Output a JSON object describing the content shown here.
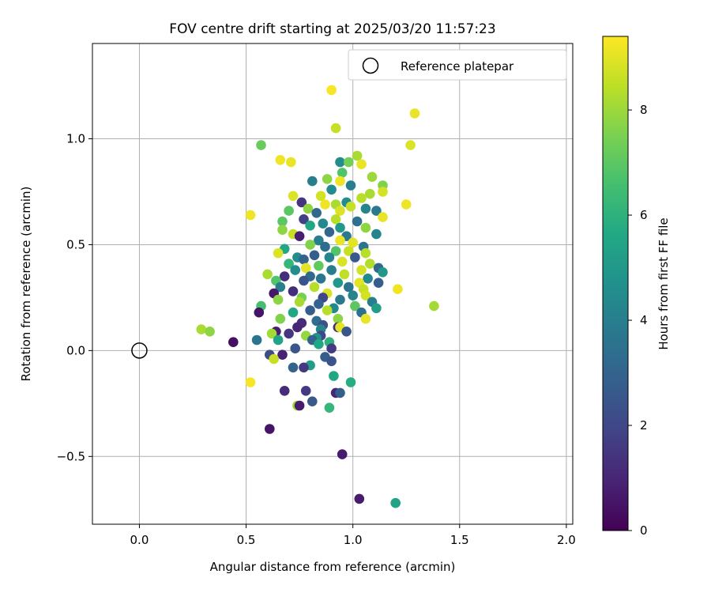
{
  "chart_data": {
    "type": "scatter",
    "title": "FOV centre drift starting at 2025/03/20 11:57:23",
    "xlabel": "Angular distance from reference (arcmin)",
    "ylabel": "Rotation from reference (arcmin)",
    "xlim": [
      -0.22,
      2.03
    ],
    "ylim": [
      -0.82,
      1.45
    ],
    "xticks": [
      0.0,
      0.5,
      1.0,
      1.5,
      2.0
    ],
    "xtick_labels": [
      "0.0",
      "0.5",
      "1.0",
      "1.5",
      "2.0"
    ],
    "yticks": [
      -0.5,
      0.0,
      0.5,
      1.0
    ],
    "ytick_labels": [
      "−0.5",
      "0.0",
      "0.5",
      "1.0"
    ],
    "grid": true,
    "legend": {
      "location": "top-right",
      "entries": [
        "Reference platepar"
      ]
    },
    "colorbar": {
      "label": "Hours from first FF file",
      "range": [
        0,
        9.4
      ],
      "ticks": [
        0,
        2,
        4,
        6,
        8
      ],
      "tick_labels": [
        "0",
        "2",
        "4",
        "6",
        "8"
      ],
      "colormap": "viridis"
    },
    "reference_point": {
      "x": 0.0,
      "y": 0.0
    },
    "points": [
      {
        "x": 0.9,
        "y": 1.23,
        "h": 9.3
      },
      {
        "x": 1.29,
        "y": 1.12,
        "h": 9.1
      },
      {
        "x": 0.92,
        "y": 1.05,
        "h": 8.6
      },
      {
        "x": 1.27,
        "y": 0.97,
        "h": 8.9
      },
      {
        "x": 0.57,
        "y": 0.97,
        "h": 7.2
      },
      {
        "x": 1.02,
        "y": 0.92,
        "h": 8.2
      },
      {
        "x": 0.66,
        "y": 0.9,
        "h": 9.2
      },
      {
        "x": 0.71,
        "y": 0.89,
        "h": 9.1
      },
      {
        "x": 0.94,
        "y": 0.89,
        "h": 4.5
      },
      {
        "x": 0.98,
        "y": 0.89,
        "h": 7.4
      },
      {
        "x": 1.04,
        "y": 0.88,
        "h": 9.1
      },
      {
        "x": 0.95,
        "y": 0.84,
        "h": 6.8
      },
      {
        "x": 1.09,
        "y": 0.82,
        "h": 8.0
      },
      {
        "x": 0.88,
        "y": 0.81,
        "h": 7.8
      },
      {
        "x": 0.81,
        "y": 0.8,
        "h": 4.0
      },
      {
        "x": 0.94,
        "y": 0.8,
        "h": 9.2
      },
      {
        "x": 1.14,
        "y": 0.78,
        "h": 7.6
      },
      {
        "x": 0.99,
        "y": 0.78,
        "h": 4.0
      },
      {
        "x": 0.9,
        "y": 0.76,
        "h": 4.5
      },
      {
        "x": 1.14,
        "y": 0.75,
        "h": 8.8
      },
      {
        "x": 1.08,
        "y": 0.74,
        "h": 8.2
      },
      {
        "x": 0.72,
        "y": 0.73,
        "h": 8.9
      },
      {
        "x": 0.85,
        "y": 0.73,
        "h": 8.8
      },
      {
        "x": 1.04,
        "y": 0.72,
        "h": 8.4
      },
      {
        "x": 0.76,
        "y": 0.7,
        "h": 1.4
      },
      {
        "x": 0.97,
        "y": 0.7,
        "h": 4.5
      },
      {
        "x": 0.87,
        "y": 0.69,
        "h": 9.2
      },
      {
        "x": 0.92,
        "y": 0.69,
        "h": 8.2
      },
      {
        "x": 1.25,
        "y": 0.69,
        "h": 9.2
      },
      {
        "x": 0.79,
        "y": 0.67,
        "h": 7.8
      },
      {
        "x": 0.7,
        "y": 0.66,
        "h": 7.0
      },
      {
        "x": 1.06,
        "y": 0.67,
        "h": 4.2
      },
      {
        "x": 0.94,
        "y": 0.66,
        "h": 8.9
      },
      {
        "x": 1.11,
        "y": 0.66,
        "h": 3.8
      },
      {
        "x": 0.99,
        "y": 0.68,
        "h": 8.6
      },
      {
        "x": 0.52,
        "y": 0.64,
        "h": 9.2
      },
      {
        "x": 0.83,
        "y": 0.65,
        "h": 3.2
      },
      {
        "x": 0.92,
        "y": 0.62,
        "h": 8.4
      },
      {
        "x": 1.14,
        "y": 0.63,
        "h": 9.1
      },
      {
        "x": 0.77,
        "y": 0.62,
        "h": 1.8
      },
      {
        "x": 0.67,
        "y": 0.61,
        "h": 7.0
      },
      {
        "x": 1.02,
        "y": 0.61,
        "h": 3.5
      },
      {
        "x": 0.86,
        "y": 0.6,
        "h": 4.4
      },
      {
        "x": 0.8,
        "y": 0.59,
        "h": 5.6
      },
      {
        "x": 1.06,
        "y": 0.58,
        "h": 7.8
      },
      {
        "x": 0.94,
        "y": 0.58,
        "h": 5.0
      },
      {
        "x": 0.67,
        "y": 0.57,
        "h": 7.8
      },
      {
        "x": 0.89,
        "y": 0.56,
        "h": 3.1
      },
      {
        "x": 0.72,
        "y": 0.55,
        "h": 8.6
      },
      {
        "x": 0.97,
        "y": 0.54,
        "h": 3.8
      },
      {
        "x": 1.11,
        "y": 0.55,
        "h": 4.2
      },
      {
        "x": 0.75,
        "y": 0.54,
        "h": 0.8
      },
      {
        "x": 0.84,
        "y": 0.52,
        "h": 4.0
      },
      {
        "x": 0.94,
        "y": 0.52,
        "h": 9.1
      },
      {
        "x": 1.0,
        "y": 0.51,
        "h": 9.0
      },
      {
        "x": 0.8,
        "y": 0.5,
        "h": 7.6
      },
      {
        "x": 1.05,
        "y": 0.49,
        "h": 3.6
      },
      {
        "x": 0.87,
        "y": 0.49,
        "h": 3.3
      },
      {
        "x": 0.92,
        "y": 0.47,
        "h": 6.8
      },
      {
        "x": 0.68,
        "y": 0.48,
        "h": 5.6
      },
      {
        "x": 0.98,
        "y": 0.47,
        "h": 8.6
      },
      {
        "x": 0.65,
        "y": 0.46,
        "h": 8.9
      },
      {
        "x": 1.06,
        "y": 0.46,
        "h": 8.4
      },
      {
        "x": 0.82,
        "y": 0.45,
        "h": 2.8
      },
      {
        "x": 0.74,
        "y": 0.44,
        "h": 4.5
      },
      {
        "x": 0.89,
        "y": 0.44,
        "h": 4.2
      },
      {
        "x": 1.01,
        "y": 0.44,
        "h": 2.6
      },
      {
        "x": 0.77,
        "y": 0.43,
        "h": 3.0
      },
      {
        "x": 0.95,
        "y": 0.42,
        "h": 8.9
      },
      {
        "x": 1.08,
        "y": 0.41,
        "h": 8.3
      },
      {
        "x": 0.7,
        "y": 0.41,
        "h": 6.2
      },
      {
        "x": 0.84,
        "y": 0.4,
        "h": 7.1
      },
      {
        "x": 1.12,
        "y": 0.39,
        "h": 3.1
      },
      {
        "x": 0.78,
        "y": 0.39,
        "h": 9.0
      },
      {
        "x": 1.04,
        "y": 0.38,
        "h": 8.8
      },
      {
        "x": 0.73,
        "y": 0.38,
        "h": 4.5
      },
      {
        "x": 0.9,
        "y": 0.38,
        "h": 4.0
      },
      {
        "x": 1.14,
        "y": 0.37,
        "h": 5.0
      },
      {
        "x": 0.6,
        "y": 0.36,
        "h": 8.2
      },
      {
        "x": 0.96,
        "y": 0.36,
        "h": 8.5
      },
      {
        "x": 0.8,
        "y": 0.35,
        "h": 3.2
      },
      {
        "x": 0.68,
        "y": 0.35,
        "h": 1.2
      },
      {
        "x": 1.07,
        "y": 0.34,
        "h": 4.4
      },
      {
        "x": 0.85,
        "y": 0.34,
        "h": 3.7
      },
      {
        "x": 0.64,
        "y": 0.33,
        "h": 6.8
      },
      {
        "x": 0.77,
        "y": 0.33,
        "h": 2.4
      },
      {
        "x": 1.03,
        "y": 0.32,
        "h": 9.0
      },
      {
        "x": 1.12,
        "y": 0.32,
        "h": 2.8
      },
      {
        "x": 0.93,
        "y": 0.32,
        "h": 5.0
      },
      {
        "x": 0.66,
        "y": 0.3,
        "h": 4.0
      },
      {
        "x": 0.98,
        "y": 0.3,
        "h": 3.6
      },
      {
        "x": 0.82,
        "y": 0.3,
        "h": 8.4
      },
      {
        "x": 1.05,
        "y": 0.29,
        "h": 8.6
      },
      {
        "x": 1.21,
        "y": 0.29,
        "h": 9.2
      },
      {
        "x": 0.72,
        "y": 0.28,
        "h": 1.2
      },
      {
        "x": 0.88,
        "y": 0.27,
        "h": 8.9
      },
      {
        "x": 0.63,
        "y": 0.27,
        "h": 0.6
      },
      {
        "x": 1.0,
        "y": 0.26,
        "h": 4.2
      },
      {
        "x": 1.06,
        "y": 0.26,
        "h": 8.8
      },
      {
        "x": 0.76,
        "y": 0.25,
        "h": 7.4
      },
      {
        "x": 0.86,
        "y": 0.25,
        "h": 2.0
      },
      {
        "x": 0.94,
        "y": 0.24,
        "h": 3.8
      },
      {
        "x": 0.65,
        "y": 0.24,
        "h": 7.8
      },
      {
        "x": 1.09,
        "y": 0.23,
        "h": 4.0
      },
      {
        "x": 0.75,
        "y": 0.23,
        "h": 8.2
      },
      {
        "x": 0.84,
        "y": 0.22,
        "h": 3.0
      },
      {
        "x": 0.57,
        "y": 0.21,
        "h": 6.6
      },
      {
        "x": 1.38,
        "y": 0.21,
        "h": 8.1
      },
      {
        "x": 1.01,
        "y": 0.21,
        "h": 7.0
      },
      {
        "x": 0.91,
        "y": 0.2,
        "h": 4.4
      },
      {
        "x": 1.11,
        "y": 0.2,
        "h": 5.2
      },
      {
        "x": 0.8,
        "y": 0.19,
        "h": 2.8
      },
      {
        "x": 0.56,
        "y": 0.18,
        "h": 0.5
      },
      {
        "x": 0.72,
        "y": 0.18,
        "h": 5.6
      },
      {
        "x": 0.88,
        "y": 0.19,
        "h": 8.4
      },
      {
        "x": 1.04,
        "y": 0.18,
        "h": 3.5
      },
      {
        "x": 0.66,
        "y": 0.15,
        "h": 7.6
      },
      {
        "x": 1.06,
        "y": 0.15,
        "h": 9.1
      },
      {
        "x": 0.93,
        "y": 0.15,
        "h": 7.8
      },
      {
        "x": 0.83,
        "y": 0.14,
        "h": 3.4
      },
      {
        "x": 0.76,
        "y": 0.13,
        "h": 1.2
      },
      {
        "x": 0.86,
        "y": 0.12,
        "h": 2.3
      },
      {
        "x": 0.93,
        "y": 0.11,
        "h": 1.2
      },
      {
        "x": 0.74,
        "y": 0.11,
        "h": 1.0
      },
      {
        "x": 0.94,
        "y": 0.11,
        "h": 9.0
      },
      {
        "x": 0.85,
        "y": 0.1,
        "h": 4.2
      },
      {
        "x": 0.29,
        "y": 0.1,
        "h": 8.2
      },
      {
        "x": 0.97,
        "y": 0.09,
        "h": 2.5
      },
      {
        "x": 0.33,
        "y": 0.09,
        "h": 7.8
      },
      {
        "x": 0.64,
        "y": 0.09,
        "h": 0.8
      },
      {
        "x": 0.7,
        "y": 0.08,
        "h": 1.5
      },
      {
        "x": 0.62,
        "y": 0.08,
        "h": 8.1
      },
      {
        "x": 0.78,
        "y": 0.07,
        "h": 7.9
      },
      {
        "x": 0.85,
        "y": 0.07,
        "h": 2.0
      },
      {
        "x": 0.83,
        "y": 0.06,
        "h": 4.8
      },
      {
        "x": 0.81,
        "y": 0.05,
        "h": 3.0
      },
      {
        "x": 0.55,
        "y": 0.05,
        "h": 3.6
      },
      {
        "x": 0.65,
        "y": 0.05,
        "h": 5.4
      },
      {
        "x": 0.89,
        "y": 0.04,
        "h": 6.0
      },
      {
        "x": 0.84,
        "y": 0.03,
        "h": 5.6
      },
      {
        "x": 0.44,
        "y": 0.04,
        "h": 0.4
      },
      {
        "x": 0.73,
        "y": 0.01,
        "h": 2.5
      },
      {
        "x": 0.9,
        "y": 0.01,
        "h": 1.6
      },
      {
        "x": 0.61,
        "y": -0.02,
        "h": 2.2
      },
      {
        "x": 0.67,
        "y": -0.02,
        "h": 0.9
      },
      {
        "x": 0.63,
        "y": -0.04,
        "h": 8.6
      },
      {
        "x": 0.87,
        "y": -0.03,
        "h": 2.8
      },
      {
        "x": 0.9,
        "y": -0.05,
        "h": 2.4
      },
      {
        "x": 0.8,
        "y": -0.07,
        "h": 5.2
      },
      {
        "x": 0.72,
        "y": -0.08,
        "h": 3.0
      },
      {
        "x": 0.77,
        "y": -0.08,
        "h": 1.6
      },
      {
        "x": 0.91,
        "y": -0.12,
        "h": 5.6
      },
      {
        "x": 0.52,
        "y": -0.15,
        "h": 9.3
      },
      {
        "x": 0.99,
        "y": -0.15,
        "h": 5.8
      },
      {
        "x": 0.68,
        "y": -0.19,
        "h": 1.2
      },
      {
        "x": 0.78,
        "y": -0.19,
        "h": 1.6
      },
      {
        "x": 0.92,
        "y": -0.2,
        "h": 1.0
      },
      {
        "x": 0.94,
        "y": -0.2,
        "h": 2.8
      },
      {
        "x": 0.81,
        "y": -0.24,
        "h": 2.6
      },
      {
        "x": 0.74,
        "y": -0.26,
        "h": 8.0
      },
      {
        "x": 0.75,
        "y": -0.26,
        "h": 0.7
      },
      {
        "x": 0.89,
        "y": -0.27,
        "h": 6.2
      },
      {
        "x": 0.61,
        "y": -0.37,
        "h": 0.5
      },
      {
        "x": 0.95,
        "y": -0.49,
        "h": 0.7
      },
      {
        "x": 1.03,
        "y": -0.7,
        "h": 0.7
      },
      {
        "x": 1.2,
        "y": -0.72,
        "h": 5.4
      }
    ]
  }
}
